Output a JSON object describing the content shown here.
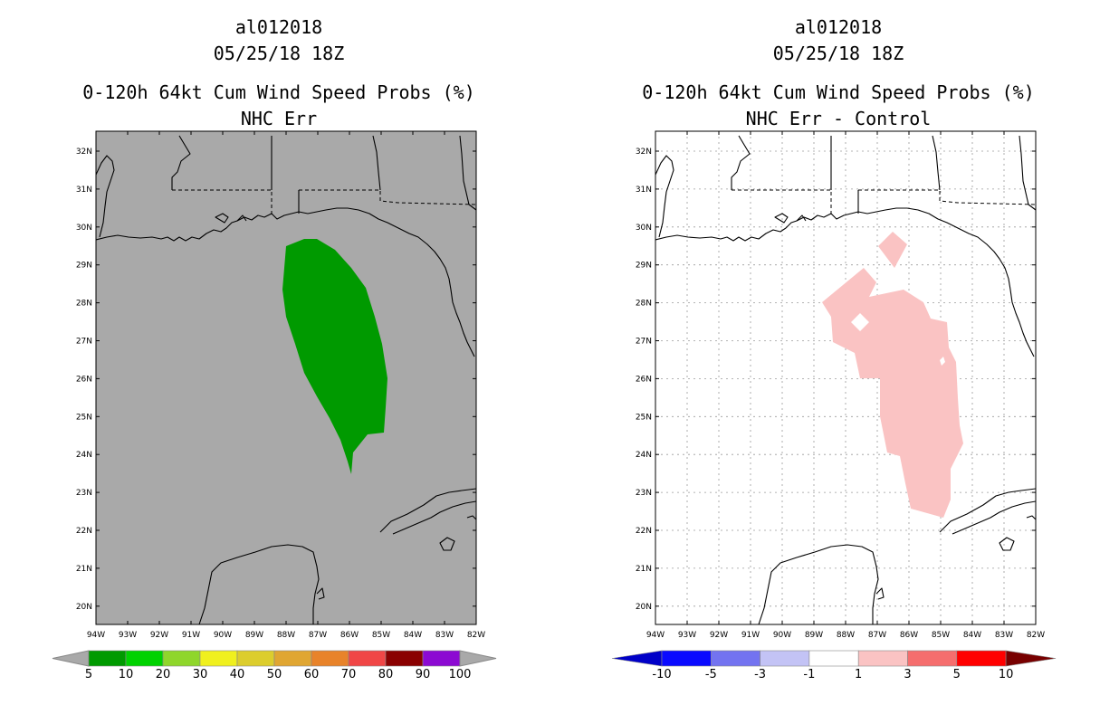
{
  "left_panel": {
    "storm_id": "al012018",
    "datetime": "05/25/18 18Z",
    "title": "0-120h 64kt Cum Wind Speed Probs (%)",
    "subtitle": "NHC Err",
    "colorbar": {
      "labels": [
        "5",
        "10",
        "20",
        "30",
        "40",
        "50",
        "60",
        "70",
        "80",
        "90",
        "100"
      ],
      "colors": [
        "#009a00",
        "#00d200",
        "#8fd62b",
        "#f0f01e",
        "#dccd2d",
        "#e0a632",
        "#e8832a",
        "#f04646",
        "#8a0000",
        "#8c0ad2"
      ]
    },
    "probability_area_color": "#009a00",
    "background_color": "#a9a9a9"
  },
  "right_panel": {
    "storm_id": "al012018",
    "datetime": "05/25/18 18Z",
    "title": "0-120h 64kt Cum Wind Speed Probs (%)",
    "subtitle": "NHC Err - Control",
    "colorbar": {
      "labels": [
        "-10",
        "-5",
        "-3",
        "-1",
        "1",
        "3",
        "5",
        "10"
      ],
      "colors": [
        "#0000c8",
        "#0a0aff",
        "#7373f0",
        "#c3c3f5",
        "#ffffff",
        "#fac3c3",
        "#f56e6e",
        "#ff0000",
        "#780000"
      ]
    },
    "difference_area_color": "#fac3c3"
  },
  "map": {
    "lat_labels": [
      "32N",
      "31N",
      "30N",
      "29N",
      "28N",
      "27N",
      "26N",
      "25N",
      "24N",
      "23N",
      "22N",
      "21N",
      "20N"
    ],
    "lon_labels": [
      "94W",
      "93W",
      "92W",
      "91W",
      "90W",
      "89W",
      "88W",
      "87W",
      "86W",
      "85W",
      "84W",
      "83W",
      "82W"
    ]
  }
}
